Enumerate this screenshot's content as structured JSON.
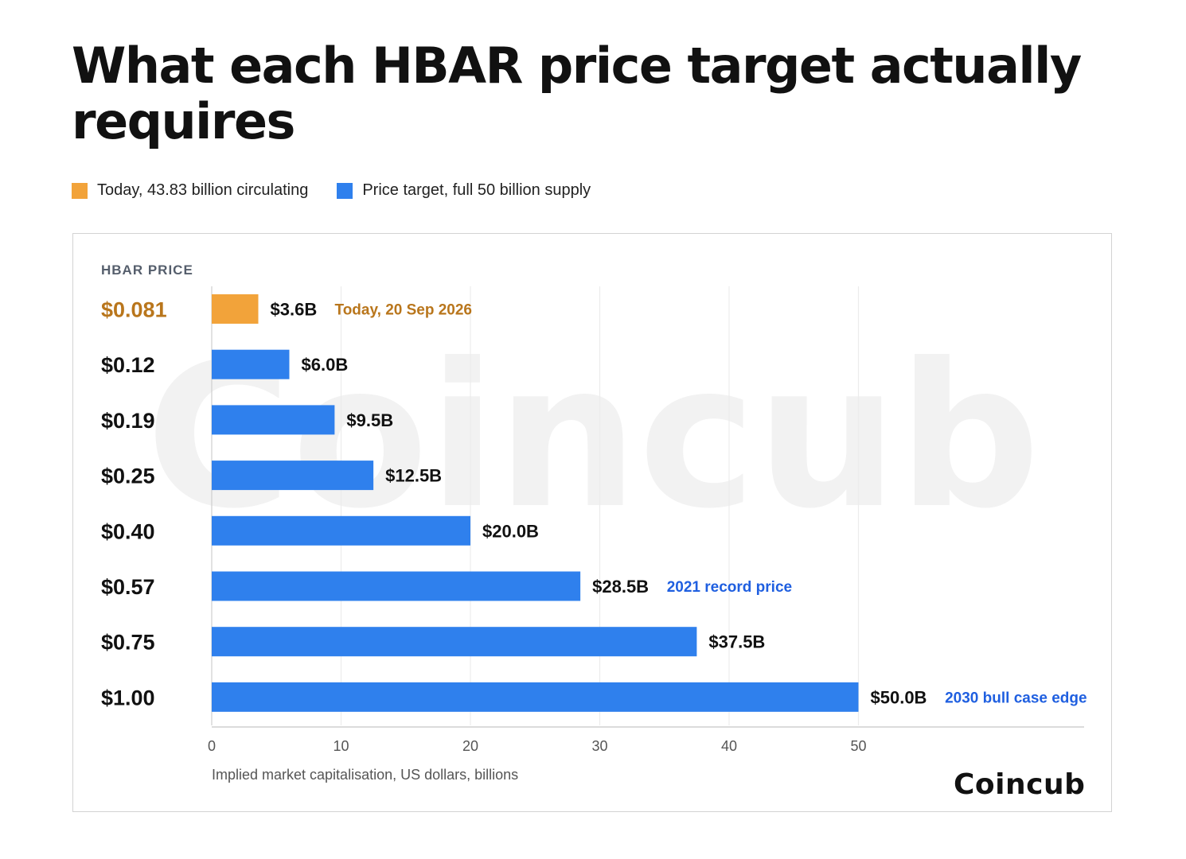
{
  "title": "What each HBAR price target actually requires",
  "legend": [
    {
      "label": "Today, 43.83 billion circulating",
      "color": "#f2a33a"
    },
    {
      "label": "Price target, full 50 billion supply",
      "color": "#2f80ed"
    }
  ],
  "brand": "Coincub",
  "watermark": "Coincub",
  "colors": {
    "today": "#f2a33a",
    "target": "#2f80ed",
    "today_text": "#b9761c",
    "note_blue": "#1f5fe0"
  },
  "chart_data": {
    "type": "bar",
    "orientation": "horizontal",
    "ylabel": "HBAR PRICE",
    "xlabel": "Implied market capitalisation, US dollars, billions",
    "xlim": [
      0,
      67.5
    ],
    "xticks": [
      0,
      10,
      20,
      30,
      40,
      50
    ],
    "grid": true,
    "legend_placement": "top-left",
    "categories": [
      "$0.081",
      "$0.12",
      "$0.19",
      "$0.25",
      "$0.40",
      "$0.57",
      "$0.75",
      "$1.00"
    ],
    "values": [
      3.6,
      6.0,
      9.5,
      12.5,
      20.0,
      28.5,
      37.5,
      50.0
    ],
    "value_labels": [
      "$3.6B",
      "$6.0B",
      "$9.5B",
      "$12.5B",
      "$20.0B",
      "$28.5B",
      "$37.5B",
      "$50.0B"
    ],
    "series_index": [
      0,
      1,
      1,
      1,
      1,
      1,
      1,
      1
    ],
    "annotations": [
      "Today, 20 Sep 2026",
      "",
      "",
      "",
      "",
      "2021 record price",
      "",
      "2030 bull case edge"
    ]
  }
}
